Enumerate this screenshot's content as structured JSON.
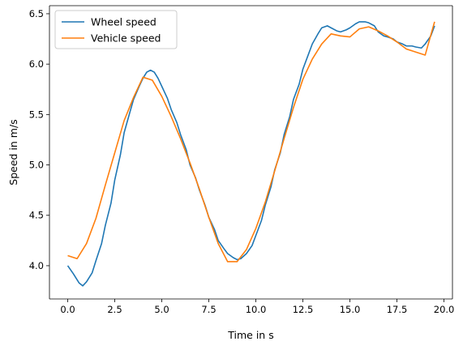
{
  "chart_data": {
    "type": "line",
    "title": "",
    "xlabel": "Time in s",
    "ylabel": "Speed in m/s",
    "xlim": [
      -0.97,
      20.45
    ],
    "ylim": [
      3.67,
      6.58
    ],
    "xticks": [
      0.0,
      2.5,
      5.0,
      7.5,
      10.0,
      12.5,
      15.0,
      17.5,
      20.0
    ],
    "xtick_labels": [
      "0.0",
      "2.5",
      "5.0",
      "7.5",
      "10.0",
      "12.5",
      "15.0",
      "17.5",
      "20.0"
    ],
    "yticks": [
      4.0,
      4.5,
      5.0,
      5.5,
      6.0,
      6.5
    ],
    "ytick_labels": [
      "4.0",
      "4.5",
      "5.0",
      "5.5",
      "6.0",
      "6.5"
    ],
    "grid": false,
    "legend": "top-left",
    "series": [
      {
        "name": "Wheel speed",
        "color": "#1f77b4",
        "x": [
          0.0,
          0.3,
          0.6,
          0.8,
          1.0,
          1.3,
          1.5,
          1.8,
          2.0,
          2.3,
          2.5,
          2.8,
          3.0,
          3.3,
          3.5,
          3.8,
          4.0,
          4.2,
          4.4,
          4.6,
          4.8,
          5.0,
          5.3,
          5.5,
          5.8,
          6.0,
          6.3,
          6.5,
          6.8,
          7.0,
          7.3,
          7.5,
          7.8,
          8.0,
          8.3,
          8.5,
          8.8,
          9.0,
          9.2,
          9.5,
          9.8,
          10.0,
          10.3,
          10.5,
          10.8,
          11.0,
          11.3,
          11.5,
          11.8,
          12.0,
          12.3,
          12.5,
          12.8,
          13.0,
          13.3,
          13.5,
          13.8,
          14.0,
          14.3,
          14.5,
          14.8,
          15.0,
          15.3,
          15.5,
          15.8,
          16.0,
          16.3,
          16.5,
          16.8,
          17.0,
          17.3,
          17.5,
          17.8,
          18.0,
          18.3,
          18.5,
          18.8,
          19.0,
          19.3,
          19.5
        ],
        "y": [
          4.0,
          3.92,
          3.83,
          3.8,
          3.84,
          3.93,
          4.05,
          4.22,
          4.4,
          4.62,
          4.85,
          5.1,
          5.32,
          5.52,
          5.65,
          5.78,
          5.86,
          5.92,
          5.94,
          5.92,
          5.86,
          5.78,
          5.66,
          5.55,
          5.42,
          5.3,
          5.15,
          5.0,
          4.87,
          4.75,
          4.6,
          4.48,
          4.36,
          4.25,
          4.17,
          4.12,
          4.08,
          4.06,
          4.07,
          4.12,
          4.2,
          4.3,
          4.45,
          4.6,
          4.78,
          4.95,
          5.12,
          5.3,
          5.48,
          5.65,
          5.8,
          5.95,
          6.1,
          6.2,
          6.3,
          6.36,
          6.38,
          6.36,
          6.33,
          6.32,
          6.34,
          6.36,
          6.4,
          6.42,
          6.42,
          6.41,
          6.38,
          6.32,
          6.28,
          6.27,
          6.25,
          6.22,
          6.2,
          6.18,
          6.18,
          6.17,
          6.16,
          6.2,
          6.28,
          6.38
        ]
      },
      {
        "name": "Vehicle speed",
        "color": "#ff7f0e",
        "x": [
          0.0,
          0.5,
          1.0,
          1.5,
          2.0,
          2.5,
          3.0,
          3.5,
          4.0,
          4.5,
          5.0,
          5.5,
          6.0,
          6.5,
          7.0,
          7.5,
          8.0,
          8.5,
          9.0,
          9.5,
          10.0,
          10.5,
          11.0,
          11.5,
          12.0,
          12.5,
          13.0,
          13.5,
          14.0,
          14.5,
          15.0,
          15.5,
          16.0,
          16.5,
          17.0,
          17.5,
          18.0,
          18.5,
          19.0,
          19.5
        ],
        "y": [
          4.1,
          4.07,
          4.22,
          4.47,
          4.8,
          5.12,
          5.44,
          5.67,
          5.87,
          5.84,
          5.68,
          5.48,
          5.26,
          5.02,
          4.76,
          4.48,
          4.22,
          4.04,
          4.04,
          4.16,
          4.37,
          4.63,
          4.94,
          5.26,
          5.57,
          5.85,
          6.05,
          6.2,
          6.3,
          6.28,
          6.27,
          6.35,
          6.37,
          6.33,
          6.28,
          6.22,
          6.15,
          6.12,
          6.09,
          6.42
        ]
      }
    ]
  }
}
